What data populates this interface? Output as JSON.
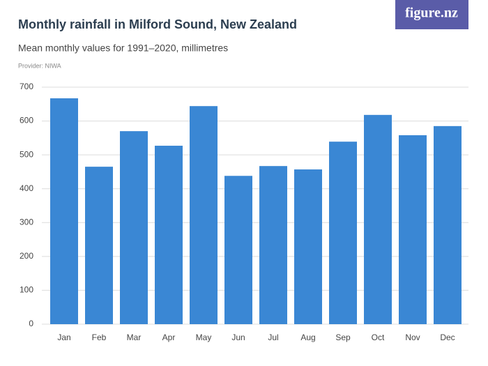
{
  "chart_data": {
    "type": "bar",
    "title": "Monthly rainfall in Milford Sound, New Zealand",
    "subtitle": "Mean monthly values for 1991–2020, millimetres",
    "provider": "Provider: NIWA",
    "logo": "figure.nz",
    "categories": [
      "Jan",
      "Feb",
      "Mar",
      "Apr",
      "May",
      "Jun",
      "Jul",
      "Aug",
      "Sep",
      "Oct",
      "Nov",
      "Dec"
    ],
    "values": [
      667,
      465,
      570,
      527,
      644,
      438,
      467,
      457,
      539,
      618,
      558,
      585
    ],
    "color": "#3a87d4",
    "ylim": [
      0,
      700
    ],
    "yticks": [
      0,
      100,
      200,
      300,
      400,
      500,
      600,
      700
    ],
    "grid": true
  }
}
